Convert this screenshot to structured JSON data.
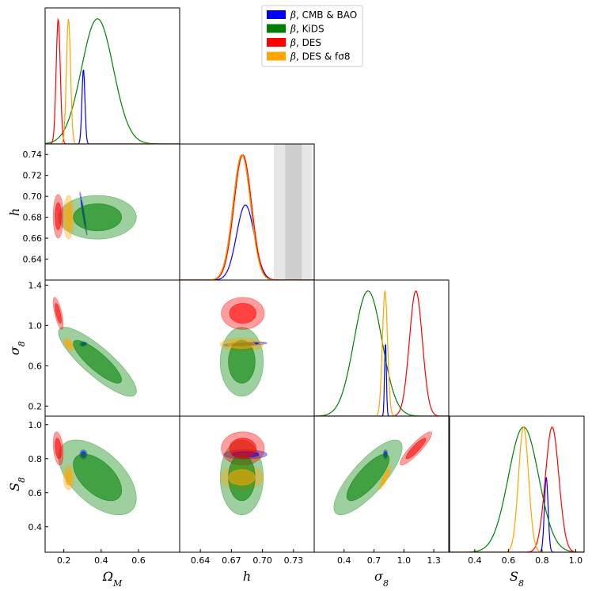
{
  "chart_data": {
    "type": "triangle-corner-plot",
    "parameters": [
      {
        "key": "om",
        "sym": "Ω",
        "sub": "M",
        "range": [
          0.1,
          0.82
        ],
        "ticks": [
          0.2,
          0.4,
          0.6
        ],
        "tick_labels": [
          "0.2",
          "0.4",
          "0.6"
        ]
      },
      {
        "key": "h",
        "sym": "h",
        "sub": "",
        "range": [
          0.62,
          0.75
        ],
        "ticks": [
          0.64,
          0.67,
          0.7,
          0.73
        ],
        "tick_labels": [
          "0.64",
          "0.67",
          "0.70",
          "0.73"
        ],
        "y_ticks": [
          0.64,
          0.66,
          0.68,
          0.7,
          0.72,
          0.74
        ],
        "y_tick_labels": [
          "0.64",
          "0.66",
          "0.68",
          "0.70",
          "0.72",
          "0.74"
        ]
      },
      {
        "key": "s8",
        "sym": "σ",
        "sub": "8",
        "range": [
          0.1,
          1.45
        ],
        "ticks": [
          0.4,
          0.7,
          1.0,
          1.3
        ],
        "tick_labels": [
          "0.4",
          "0.7",
          "1.0",
          "1.3"
        ],
        "y_ticks": [
          0.2,
          0.6,
          1.0,
          1.4
        ],
        "y_tick_labels": [
          "0.2",
          "0.6",
          "1.0",
          "1.4"
        ]
      },
      {
        "key": "S8",
        "sym": "S",
        "sub": "8",
        "range": [
          0.25,
          1.05
        ],
        "ticks": [
          0.4,
          0.6,
          0.8,
          1.0
        ],
        "tick_labels": [
          "0.4",
          "0.6",
          "0.8",
          "1.0"
        ]
      }
    ],
    "series": [
      {
        "name": "CMB & BAO",
        "label_prefix": "β, ",
        "label_text": "CMB & BAO",
        "color": "#0000ff",
        "mean": {
          "om": 0.305,
          "h": 0.6835,
          "s8": 0.815,
          "S8": 0.825
        },
        "sd": {
          "om": 0.008,
          "h": 0.0085,
          "s8": 0.009,
          "S8": 0.011
        },
        "corr": {
          "om-h": -0.97,
          "om-s8": 0.1,
          "om-S8": 0.0,
          "h-s8": 0.5,
          "h-S8": 0.0,
          "s8-S8": 0.0
        },
        "pdf_scale": 0.6
      },
      {
        "name": "KiDS",
        "label_prefix": "β, ",
        "label_text": "KiDS",
        "color": "#008000",
        "mean": {
          "om": 0.38,
          "h": 0.68,
          "s8": 0.64,
          "S8": 0.69
        },
        "sd": {
          "om": 0.085,
          "h": 0.0085,
          "s8": 0.14,
          "S8": 0.09
        },
        "corr": {
          "om-h": 0.0,
          "om-s8": -0.85,
          "om-S8": -0.55,
          "h-s8": 0.0,
          "h-S8": 0.0,
          "s8-S8": 0.8
        },
        "pdf_scale": 1.0
      },
      {
        "name": "DES",
        "label_prefix": "β, ",
        "label_text": "DES",
        "color": "#ff0000",
        "mean": {
          "om": 0.17,
          "h": 0.681,
          "s8": 1.12,
          "S8": 0.86
        },
        "sd": {
          "om": 0.011,
          "h": 0.0085,
          "s8": 0.065,
          "S8": 0.04
        },
        "corr": {
          "om-h": 0.0,
          "om-s8": -0.7,
          "om-S8": -0.3,
          "h-s8": 0.0,
          "h-S8": 0.0,
          "s8-S8": 0.9
        },
        "pdf_scale": 1.0
      },
      {
        "name": "DES & fσ8",
        "label_prefix": "β, ",
        "label_text": "DES & fσ8",
        "color": "#ffa500",
        "mean": {
          "om": 0.225,
          "h": 0.68,
          "s8": 0.81,
          "S8": 0.69
        },
        "sd": {
          "om": 0.011,
          "h": 0.0085,
          "s8": 0.026,
          "S8": 0.03
        },
        "corr": {
          "om-h": 0.0,
          "om-s8": -0.5,
          "om-S8": 0.0,
          "h-s8": 0.0,
          "h-S8": 0.0,
          "s8-S8": 0.9
        },
        "pdf_scale": 1.0
      }
    ],
    "h_band": {
      "inner": [
        0.722,
        0.738
      ],
      "outer": [
        0.711,
        0.748
      ]
    },
    "legend_position": "top-right",
    "contour_levels": [
      "68%",
      "95%"
    ]
  }
}
